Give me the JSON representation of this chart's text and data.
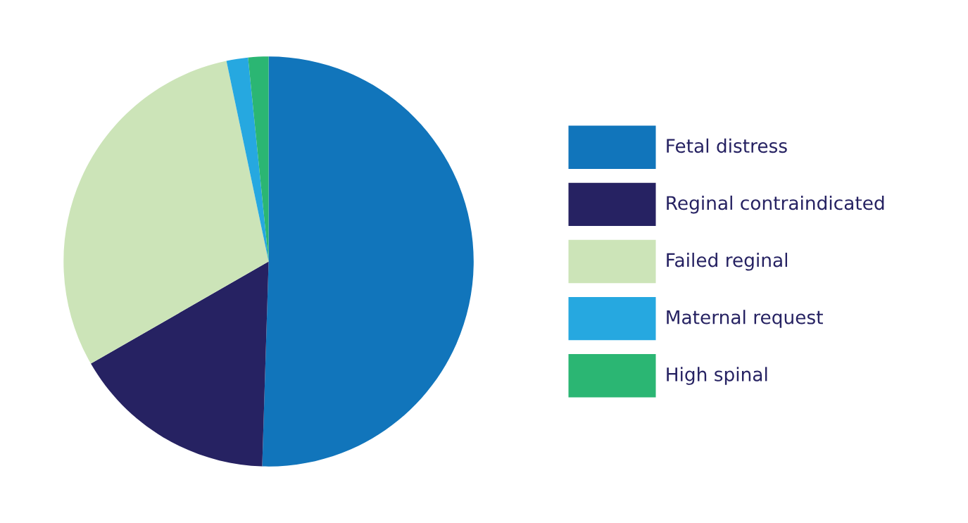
{
  "chart_data": {
    "type": "pie",
    "categories": [
      "Fetal distress",
      "Reginal contraindicated",
      "Failed reginal",
      "Maternal request",
      "High spinal"
    ],
    "values": [
      50.5,
      16.2,
      30.0,
      1.7,
      1.6
    ],
    "colors": [
      "#1175bb",
      "#262262",
      "#cce4b8",
      "#26a8e0",
      "#2bb673"
    ],
    "legend": "right"
  }
}
